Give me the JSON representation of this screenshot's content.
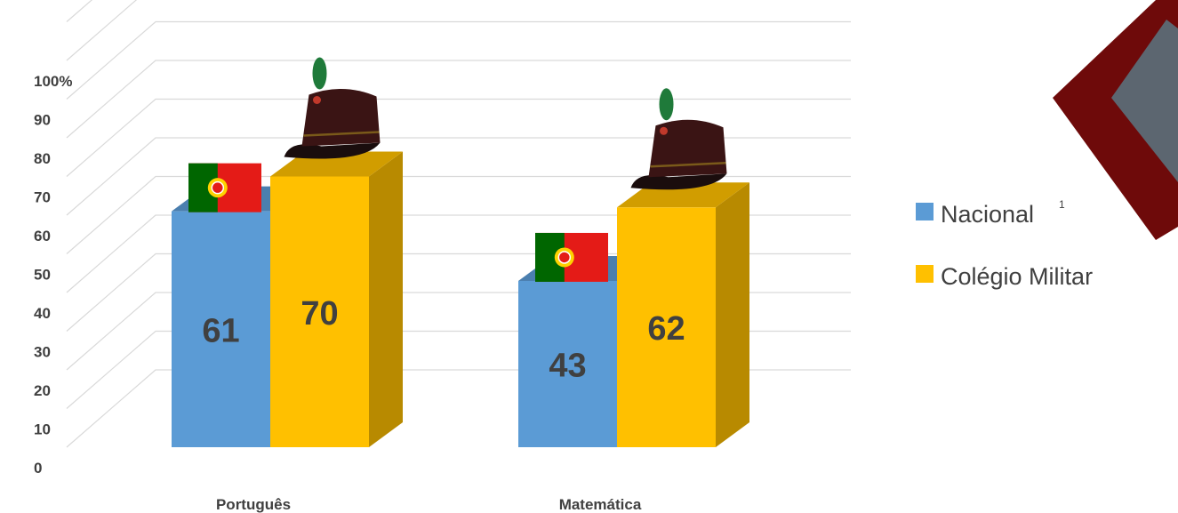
{
  "chart_data": {
    "type": "bar",
    "categories": [
      "Português",
      "Matemática"
    ],
    "series": [
      {
        "name": "Nacional",
        "values": [
          61,
          43
        ],
        "color": "#5B9BD5",
        "marker": "portugal-flag-icon"
      },
      {
        "name": "Colégio Militar",
        "values": [
          70,
          62
        ],
        "color": "#FFC000",
        "marker": "military-shako-icon"
      }
    ],
    "y_ticks": [
      "0",
      "10",
      "20",
      "30",
      "40",
      "50",
      "60",
      "70",
      "80",
      "90",
      "100%"
    ],
    "ylim": [
      0,
      110
    ],
    "legend_superscript": "1",
    "legend_position": "right",
    "grid": true,
    "style": "3d-column"
  }
}
